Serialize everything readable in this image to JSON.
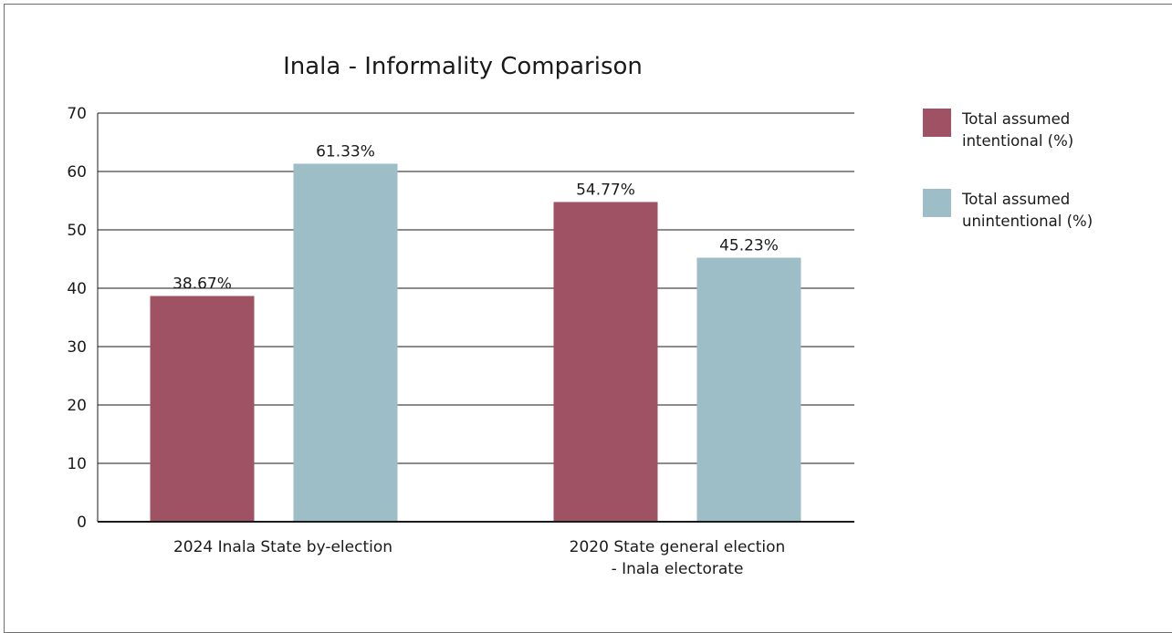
{
  "chart_data": {
    "type": "bar",
    "title": "Inala - Informality Comparison",
    "xlabel": "",
    "ylabel": "",
    "ylim": [
      0,
      70
    ],
    "yticks": [
      0,
      10,
      20,
      30,
      40,
      50,
      60,
      70
    ],
    "grid": true,
    "legend_position": "right",
    "categories": [
      [
        "2024 Inala State by-election"
      ],
      [
        "2020 State general election",
        "- Inala electorate"
      ]
    ],
    "series": [
      {
        "name": [
          "Total assumed",
          "intentional (%)"
        ],
        "color": "#a05265",
        "values": [
          38.67,
          54.77
        ],
        "labels": [
          "38.67%",
          "54.77%"
        ]
      },
      {
        "name": [
          "Total assumed",
          "unintentional (%)"
        ],
        "color": "#9dbec7",
        "values": [
          61.33,
          45.23
        ],
        "labels": [
          "61.33%",
          "45.23%"
        ]
      }
    ]
  }
}
